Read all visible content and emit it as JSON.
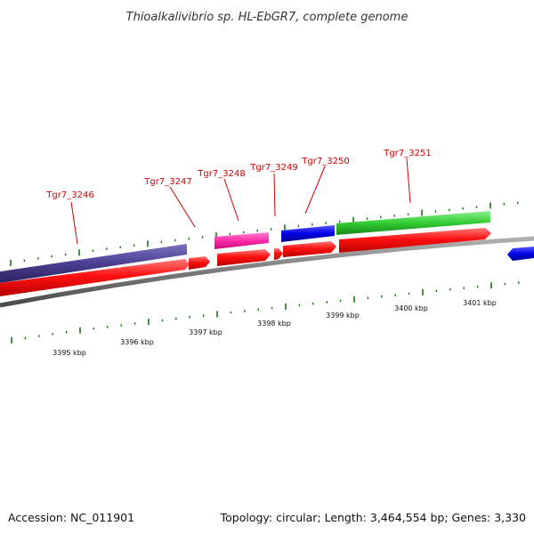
{
  "title": "Thioalkalivibrio sp. HL-EbGR7, complete genome",
  "footer": {
    "accession": "Accession: NC_011901",
    "summary": "Topology: circular; Length: 3,464,554 bp; Genes: 3,330"
  },
  "colors": {
    "cds": "#ff0000",
    "cds_top": "#ff5a5a",
    "feature_purple": "#4b3f91",
    "feature_pink": "#ff2aa6",
    "feature_blue": "#0000e6",
    "feature_green": "#33cc33",
    "backbone": "#808080",
    "tick": "#117711",
    "label_red": "#d40000"
  },
  "gene_labels": [
    "Tgr7_3246",
    "Tgr7_3247",
    "Tgr7_3248",
    "Tgr7_3249",
    "Tgr7_3250",
    "Tgr7_3251"
  ],
  "kbp_labels": [
    "3395 kbp",
    "3396 kbp",
    "3397 kbp",
    "3398 kbp",
    "3399 kbp",
    "3400 kbp",
    "3401 kbp"
  ]
}
